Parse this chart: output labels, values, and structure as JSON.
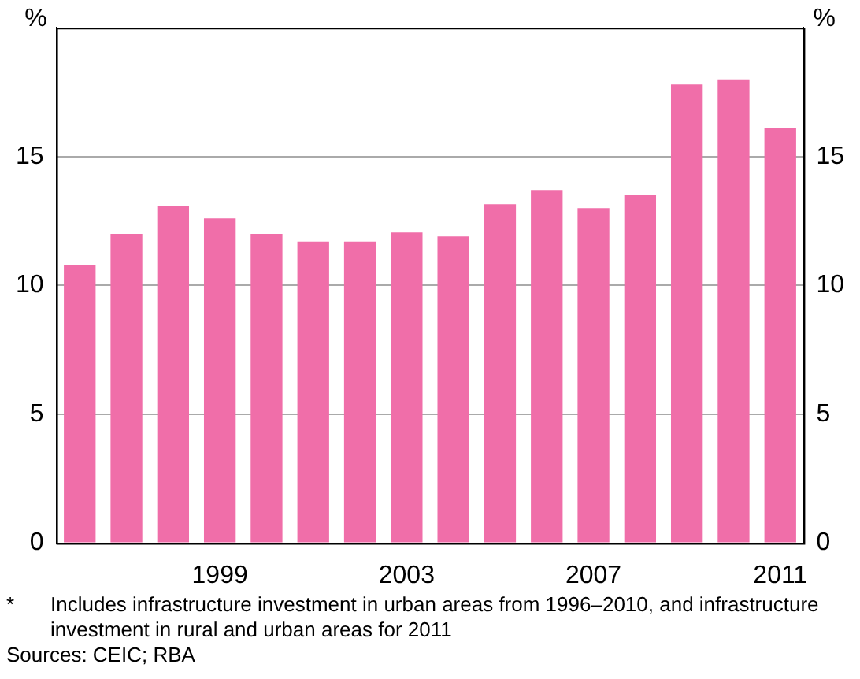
{
  "chart_data": {
    "type": "bar",
    "categories": [
      null,
      null,
      null,
      "1999",
      null,
      null,
      null,
      "2003",
      null,
      null,
      null,
      "2007",
      null,
      null,
      null,
      "2011"
    ],
    "values": [
      10.8,
      12.0,
      13.1,
      12.6,
      12.0,
      11.7,
      11.7,
      12.05,
      11.9,
      13.15,
      13.7,
      13.0,
      13.5,
      17.8,
      18.0,
      16.1
    ],
    "color": "#f06ea9",
    "ylim": [
      0,
      20
    ],
    "yticks": [
      0,
      5,
      10,
      15
    ],
    "y2lim": [
      0,
      20
    ],
    "y2ticks": [
      0,
      5,
      10,
      15
    ],
    "ylabel": "%",
    "y2label": "%",
    "grid": "y",
    "annotations": [
      "*\tIncludes infrastructure investment in urban areas from 1996–2010, and infrastructure investment in rural and urban areas for 2011",
      "Sources: CEIC; RBA"
    ]
  }
}
